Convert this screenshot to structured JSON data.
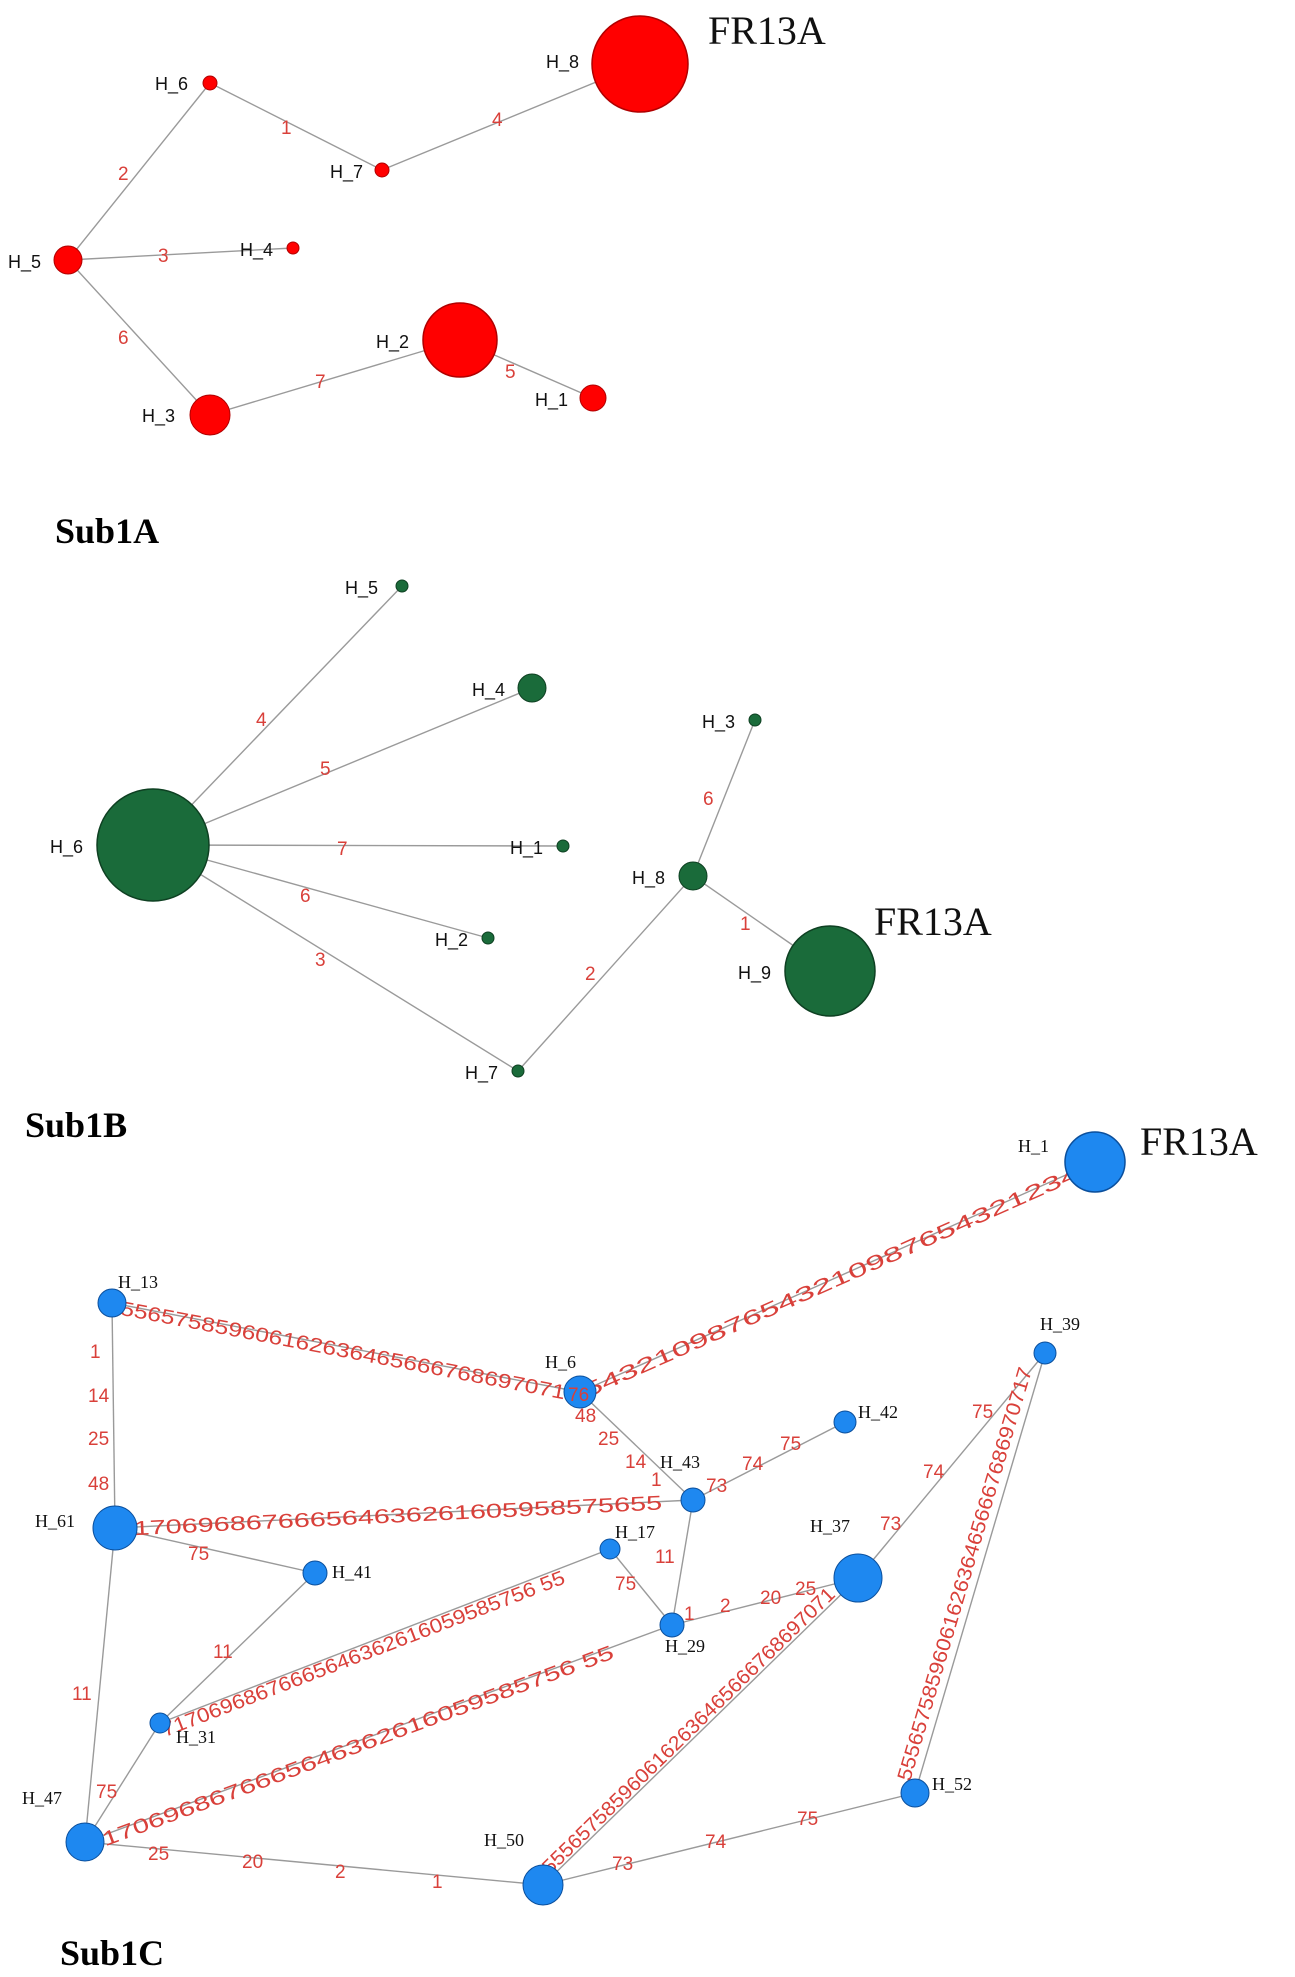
{
  "panels": {
    "sub1a": {
      "title": "Sub1A",
      "annotation": "FR13A"
    },
    "sub1b": {
      "title": "Sub1B",
      "annotation": "FR13A"
    },
    "sub1c": {
      "title": "Sub1C",
      "annotation": "FR13A"
    }
  },
  "sub1a": {
    "color": "#ff0000",
    "nodes": {
      "h8": "H_8",
      "h6": "H_6",
      "h7": "H_7",
      "h5": "H_5",
      "h4": "H_4",
      "h2": "H_2",
      "h3": "H_3",
      "h1": "H_1"
    },
    "edges": {
      "h6_h7": "1",
      "h7_h8": "4",
      "h5_h6": "2",
      "h5_h4": "3",
      "h5_h3": "6",
      "h3_h2": "7",
      "h2_h1": "5"
    }
  },
  "sub1b": {
    "color": "#1a6b3a",
    "nodes": {
      "h5": "H_5",
      "h4": "H_4",
      "h6": "H_6",
      "h1": "H_1",
      "h2": "H_2",
      "h7": "H_7",
      "h3": "H_3",
      "h8": "H_8",
      "h9": "H_9"
    },
    "edges": {
      "h6_h5": "4",
      "h6_h4": "5",
      "h6_h1": "7",
      "h6_h2": "6",
      "h6_h7": "3",
      "h7_h8": "2",
      "h8_h3": "6",
      "h8_h9": "1"
    }
  },
  "sub1c": {
    "color": "#1e88f0",
    "nodes": {
      "h1": "H_1",
      "h13": "H_13",
      "h39": "H_39",
      "h6": "H_6",
      "h42": "H_42",
      "h43": "H_43",
      "h61": "H_61",
      "h17": "H_17",
      "h37": "H_37",
      "h41": "H_41",
      "h29": "H_29",
      "h31": "H_31",
      "h47": "H_47",
      "h50": "H_50",
      "h52": "H_52"
    },
    "chains": {
      "h1_h6": "54321098765432109876543212345",
      "h13_h6": "55565758596061626364656667686970717",
      "h61_h43": "7170696867666564636261605958575655",
      "h31_h17": "71706968676665646362616059585756 55",
      "h47_h29": "71706968676665646362616059585756 55",
      "h50_h37": "5556575859606162636465666768697071",
      "h52_h39": "55565758596061626364656667686970717"
    },
    "edge_labels": {
      "h13_h61_a": "1",
      "h13_h61_b": "14",
      "h13_h61_c": "25",
      "h13_h61_d": "48",
      "h6_h43_a": "48",
      "h6_h43_b": "25",
      "h6_h43_c": "14",
      "h6_h43_d": "1",
      "h43_h42_a": "73",
      "h43_h42_b": "74",
      "h43_h42_c": "75",
      "h61_h41": "75",
      "h41_h31": "11",
      "h17_h29_a": "75",
      "h43_h29": "11",
      "h29_h37_a": "1",
      "h29_h37_b": "2",
      "h29_h37_c": "20",
      "h29_h37_d": "25",
      "h61_h47": "11",
      "h31_h47": "75",
      "h47_h50_a": "25",
      "h47_h50_b": "20",
      "h47_h50_c": "2",
      "h47_h50_d": "1",
      "h50_h52_a": "73",
      "h50_h52_b": "74",
      "h50_h52_c": "75",
      "h37_h39_a": "73",
      "h37_h39_b": "74",
      "h37_h39_c": "75",
      "h6_node": "76"
    }
  }
}
